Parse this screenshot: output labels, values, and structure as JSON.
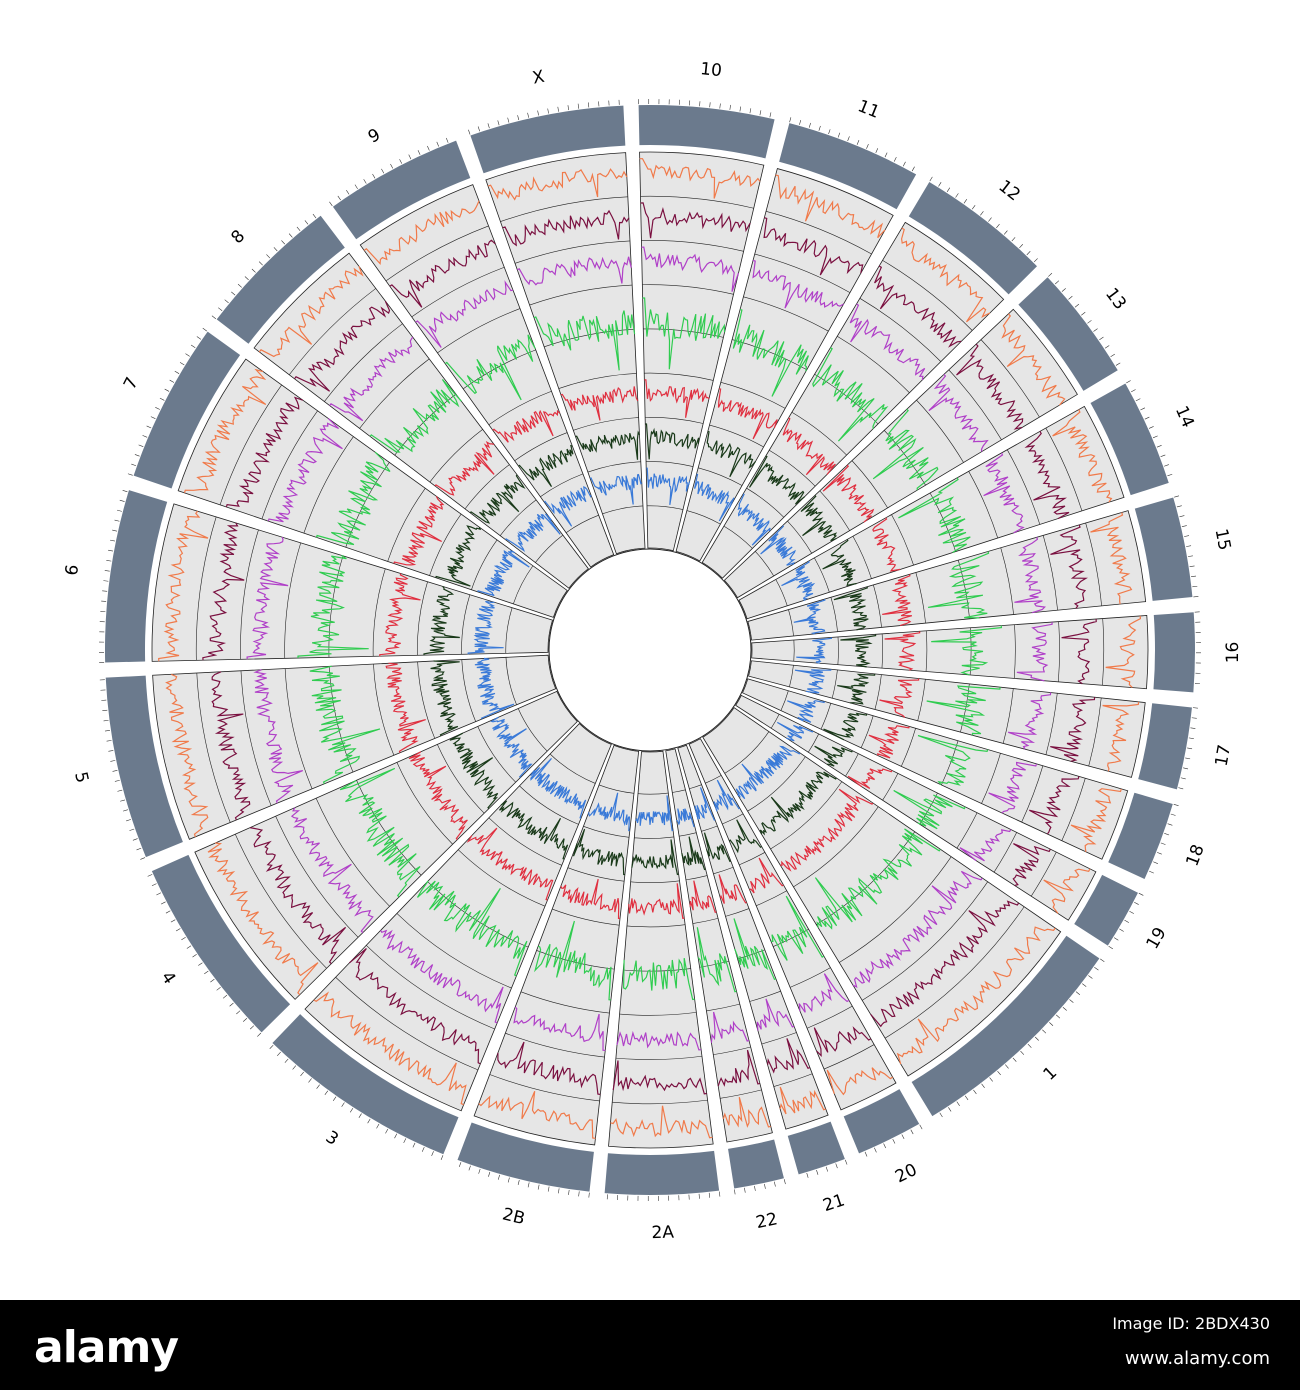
{
  "colors": {
    "ideogram": "#6b7a8d",
    "panel_bg": "#e6e6e6",
    "panel_stroke": "#222222",
    "tracks": [
      "#f07a4a",
      "#7a1040",
      "#b040c8",
      "#30cc50",
      "#e03040",
      "#1a3a1a",
      "#3a7ad8"
    ]
  },
  "chromosomes": [
    {
      "name": "10",
      "size": 135
    },
    {
      "name": "11",
      "size": 135
    },
    {
      "name": "12",
      "size": 135
    },
    {
      "name": "13",
      "size": 115
    },
    {
      "name": "14",
      "size": 107
    },
    {
      "name": "15",
      "size": 100
    },
    {
      "name": "16",
      "size": 79
    },
    {
      "name": "17",
      "size": 82
    },
    {
      "name": "18",
      "size": 79
    },
    {
      "name": "19",
      "size": 60
    },
    {
      "name": "1",
      "size": 228
    },
    {
      "name": "20",
      "size": 66
    },
    {
      "name": "21",
      "size": 48
    },
    {
      "name": "22",
      "size": 50
    },
    {
      "name": "2A",
      "size": 113
    },
    {
      "name": "2B",
      "size": 134
    },
    {
      "name": "3",
      "size": 202
    },
    {
      "name": "4",
      "size": 193
    },
    {
      "name": "5",
      "size": 182
    },
    {
      "name": "6",
      "size": 172
    },
    {
      "name": "7",
      "size": 160
    },
    {
      "name": "8",
      "size": 145
    },
    {
      "name": "9",
      "size": 138
    },
    {
      "name": "X",
      "size": 154
    }
  ],
  "watermark": {
    "logo": "alamy",
    "image_id": "Image ID: 2BDX430",
    "url": "www.alamy.com"
  }
}
